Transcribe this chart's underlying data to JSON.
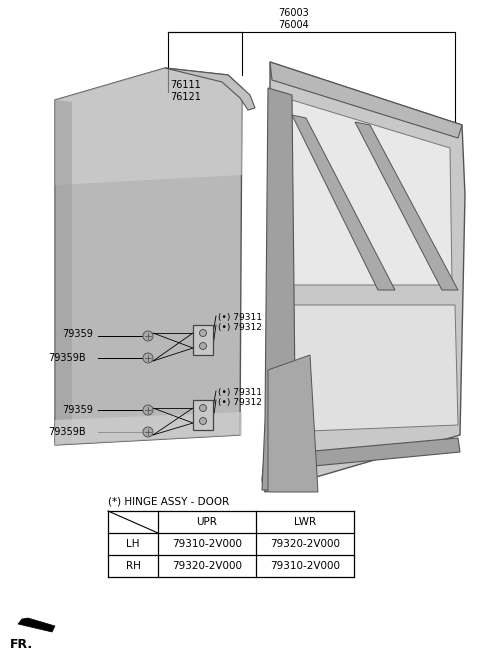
{
  "bg_color": "#ffffff",
  "fig_width": 4.8,
  "fig_height": 6.56,
  "dpi": 100,
  "label_76003_76004": "76003\n76004",
  "label_76111_76121": "76111\n76121",
  "label_79311a": "(•) 79311",
  "label_79312a": "(•) 79312",
  "label_79311b": "(•) 79311",
  "label_79312b": "(•) 79312",
  "label_79359a": "79359",
  "label_79359b": "79359",
  "label_79359Ba": "79359B",
  "label_79359Bb": "79359B",
  "table_title": "(*) HINGE ASSY - DOOR",
  "table_col1": "UPR",
  "table_col2": "LWR",
  "table_row1": [
    "LH",
    "79310-2V000",
    "79320-2V000"
  ],
  "table_row2": [
    "RH",
    "79320-2V000",
    "79310-2V000"
  ],
  "fr_label": "FR.",
  "text_color": "#000000",
  "line_color": "#000000",
  "gray_dark": "#888888",
  "gray_mid": "#aaaaaa",
  "gray_light": "#cccccc",
  "gray_panel": "#b0b0b0",
  "gray_frame": "#c0c0c0"
}
